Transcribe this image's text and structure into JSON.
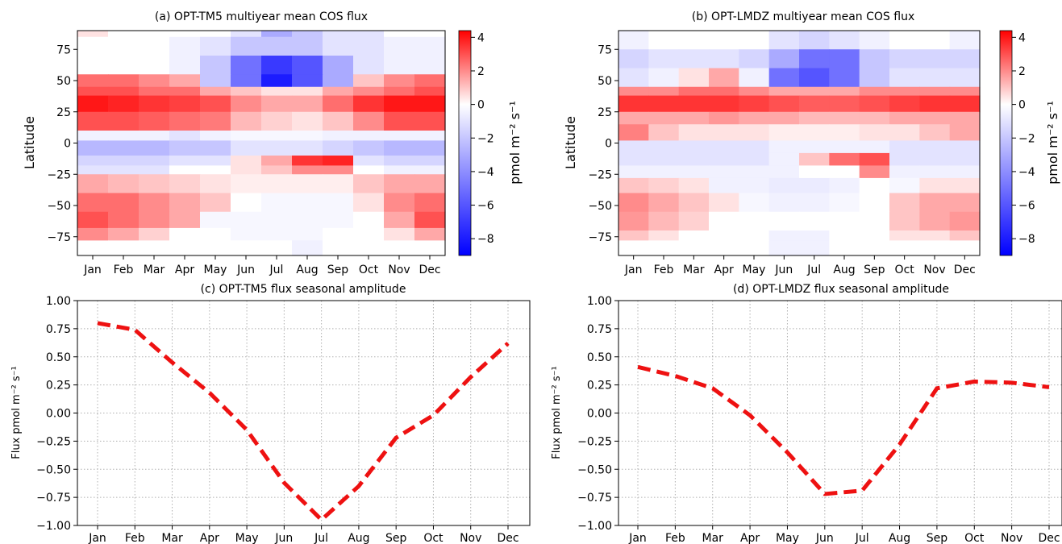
{
  "months": [
    "Jan",
    "Feb",
    "Mar",
    "Apr",
    "May",
    "Jun",
    "Jul",
    "Aug",
    "Sep",
    "Oct",
    "Nov",
    "Dec"
  ],
  "colorbar": {
    "label": "pmol m⁻² s⁻¹",
    "ticks": [
      "4",
      "2",
      "0",
      "−2",
      "−4",
      "−6",
      "−8"
    ],
    "range": [
      -9,
      4.4
    ],
    "colors": {
      "neg": "#0000ff",
      "zero": "#ffffff",
      "pos": "#ff0000"
    }
  },
  "line_style": {
    "color": "#ee1111",
    "dash": "dashed"
  },
  "chart_data": [
    {
      "id": "a",
      "type": "heatmap",
      "title": "(a) OPT-TM5 multiyear mean COS flux",
      "ylabel": "Latitude",
      "xlabel": "",
      "x": [
        "Jan",
        "Feb",
        "Mar",
        "Apr",
        "May",
        "Jun",
        "Jul",
        "Aug",
        "Sep",
        "Oct",
        "Nov",
        "Dec"
      ],
      "ylim": [
        -90,
        90
      ],
      "yticks": [
        "75",
        "50",
        "25",
        "0",
        "−25",
        "−50",
        "−75"
      ],
      "bands": [
        {
          "lat": [
            85,
            90
          ],
          "v": [
            0.5,
            0,
            0,
            0,
            0,
            -1,
            -3,
            -2,
            -1,
            -1,
            0,
            0
          ]
        },
        {
          "lat": [
            70,
            85
          ],
          "v": [
            0,
            0,
            0,
            -0.5,
            -1,
            -2,
            -2,
            -2,
            -1,
            -1,
            -0.5,
            -0.5
          ]
        },
        {
          "lat": [
            55,
            70
          ],
          "v": [
            0,
            0,
            0,
            -0.5,
            -2,
            -5,
            -7,
            -6,
            -3,
            -1,
            -0.5,
            -0.5
          ]
        },
        {
          "lat": [
            45,
            55
          ],
          "v": [
            2.5,
            2.5,
            2,
            1.5,
            -2,
            -5,
            -8,
            -6,
            -3,
            1,
            2,
            2.5
          ]
        },
        {
          "lat": [
            38,
            45
          ],
          "v": [
            3,
            3,
            2.5,
            2.5,
            1.5,
            1,
            0.5,
            0.5,
            1.5,
            2,
            2.5,
            3
          ]
        },
        {
          "lat": [
            25,
            38
          ],
          "v": [
            4,
            3.8,
            3.5,
            3.3,
            3,
            2,
            1.5,
            1.5,
            2.5,
            3.5,
            4,
            4
          ]
        },
        {
          "lat": [
            10,
            25
          ],
          "v": [
            3,
            3,
            2.8,
            2.5,
            2.3,
            1.2,
            0.8,
            0.5,
            1,
            2,
            3,
            3
          ]
        },
        {
          "lat": [
            2,
            10
          ],
          "v": [
            -0.5,
            -0.5,
            -0.5,
            -1,
            -0.5,
            -0.3,
            -0.3,
            -0.3,
            -0.5,
            -0.5,
            -0.5,
            -0.5
          ]
        },
        {
          "lat": [
            -10,
            2
          ],
          "v": [
            -2.5,
            -2.5,
            -2.5,
            -2,
            -2,
            -1,
            -1,
            -1,
            -1.5,
            -2,
            -2.5,
            -2.5
          ]
        },
        {
          "lat": [
            -18,
            -10
          ],
          "v": [
            -1.5,
            -1.5,
            -1.5,
            -1,
            -1,
            0.5,
            1.5,
            3.5,
            3.8,
            -1,
            -1.5,
            -1.5
          ]
        },
        {
          "lat": [
            -25,
            -18
          ],
          "v": [
            -1,
            -1,
            -1,
            0,
            0,
            0.5,
            1,
            2,
            2,
            0,
            -0.5,
            -0.5
          ]
        },
        {
          "lat": [
            -40,
            -25
          ],
          "v": [
            1.5,
            1.2,
            1,
            0.8,
            0.5,
            0.3,
            0.3,
            0.3,
            0.3,
            1,
            1.5,
            1.5
          ]
        },
        {
          "lat": [
            -55,
            -40
          ],
          "v": [
            2.5,
            2.5,
            2,
            1.5,
            1,
            0,
            -0.3,
            -0.3,
            -0.3,
            0.5,
            2,
            2.5
          ]
        },
        {
          "lat": [
            -68,
            -55
          ],
          "v": [
            3,
            2.5,
            2,
            1.5,
            -0.3,
            -0.3,
            -0.3,
            -0.3,
            -0.3,
            0,
            1.5,
            3
          ]
        },
        {
          "lat": [
            -78,
            -68
          ],
          "v": [
            2,
            1.5,
            0.8,
            0,
            0,
            -0.3,
            -0.3,
            -0.3,
            0,
            0,
            0.5,
            1.5
          ]
        },
        {
          "lat": [
            -90,
            -78
          ],
          "v": [
            0,
            0,
            0,
            0,
            0,
            0,
            0,
            -0.5,
            0,
            0,
            0,
            0
          ]
        }
      ]
    },
    {
      "id": "b",
      "type": "heatmap",
      "title": "(b) OPT-LMDZ multiyear mean COS flux",
      "ylabel": "Latitude",
      "xlabel": "",
      "x": [
        "Jan",
        "Feb",
        "Mar",
        "Apr",
        "May",
        "Jun",
        "Jul",
        "Aug",
        "Sep",
        "Oct",
        "Nov",
        "Dec"
      ],
      "ylim": [
        -90,
        90
      ],
      "yticks": [
        "75",
        "50",
        "25",
        "0",
        "−25",
        "−50",
        "−75"
      ],
      "bands": [
        {
          "lat": [
            75,
            90
          ],
          "v": [
            -0.5,
            0,
            0,
            0,
            0,
            -1,
            -1.5,
            -1,
            -0.5,
            0,
            0,
            -0.5
          ]
        },
        {
          "lat": [
            60,
            75
          ],
          "v": [
            -1.5,
            -1,
            -1,
            -1,
            -1.5,
            -3,
            -5,
            -5,
            -2,
            -1.5,
            -1.5,
            -1.5
          ]
        },
        {
          "lat": [
            45,
            60
          ],
          "v": [
            -1,
            -0.5,
            0.5,
            1.5,
            -0.5,
            -5,
            -6,
            -5,
            -2,
            -1,
            -1,
            -1
          ]
        },
        {
          "lat": [
            38,
            45
          ],
          "v": [
            2,
            2,
            2.5,
            2.5,
            2,
            1.5,
            1.5,
            1.5,
            2,
            2,
            2,
            2
          ]
        },
        {
          "lat": [
            25,
            38
          ],
          "v": [
            3.5,
            3.5,
            3.5,
            3.5,
            3.3,
            3,
            2.8,
            2.8,
            3,
            3.3,
            3.5,
            3.5
          ]
        },
        {
          "lat": [
            15,
            25
          ],
          "v": [
            1.5,
            1.5,
            1.5,
            1.8,
            1.5,
            1.5,
            1.2,
            1.2,
            1.2,
            1.5,
            1.5,
            1.5
          ]
        },
        {
          "lat": [
            2,
            15
          ],
          "v": [
            2.2,
            1,
            0.5,
            0.5,
            0.5,
            0.3,
            0.3,
            0.3,
            0.5,
            0.5,
            1,
            1.5
          ]
        },
        {
          "lat": [
            -8,
            2
          ],
          "v": [
            -1,
            -1,
            -1,
            -1,
            -1,
            -0.5,
            -0.5,
            -0.5,
            -0.5,
            -1,
            -1,
            -1
          ]
        },
        {
          "lat": [
            -18,
            -8
          ],
          "v": [
            -1,
            -1,
            -1,
            -1,
            -1,
            -0.5,
            1,
            2.5,
            3,
            -1,
            -1,
            -1
          ]
        },
        {
          "lat": [
            -28,
            -18
          ],
          "v": [
            -0.5,
            -0.5,
            -0.5,
            -0.5,
            -0.5,
            -0.5,
            0,
            0,
            2,
            -0.5,
            -0.5,
            -0.5
          ]
        },
        {
          "lat": [
            -40,
            -28
          ],
          "v": [
            1,
            0.8,
            0.5,
            -0.5,
            -0.5,
            -0.7,
            -0.7,
            -0.5,
            0,
            -0.3,
            0.5,
            0.5
          ]
        },
        {
          "lat": [
            -55,
            -40
          ],
          "v": [
            2,
            1.5,
            1,
            0.5,
            -0.3,
            -0.5,
            -0.5,
            -0.3,
            0,
            1,
            1.5,
            1.5
          ]
        },
        {
          "lat": [
            -70,
            -55
          ],
          "v": [
            1.8,
            1.2,
            0.8,
            0,
            0,
            0,
            0,
            0,
            0,
            1,
            1.5,
            1.8
          ]
        },
        {
          "lat": [
            -78,
            -70
          ],
          "v": [
            1,
            0.5,
            0,
            0,
            0,
            -0.5,
            -0.5,
            0,
            0,
            0.5,
            0.5,
            1
          ]
        },
        {
          "lat": [
            -90,
            -78
          ],
          "v": [
            0,
            0,
            0,
            0,
            0,
            -0.5,
            -0.5,
            0,
            0,
            0,
            0,
            0
          ]
        }
      ]
    },
    {
      "id": "c",
      "type": "line",
      "title": "(c) OPT-TM5 flux seasonal amplitude",
      "ylabel": "Flux pmol m⁻² s⁻¹",
      "xlabel": "",
      "categories": [
        "Jan",
        "Feb",
        "Mar",
        "Apr",
        "May",
        "Jun",
        "Jul",
        "Aug",
        "Sep",
        "Oct",
        "Nov",
        "Dec"
      ],
      "ylim": [
        -1.0,
        1.0
      ],
      "yticks": [
        "1.00",
        "0.75",
        "0.50",
        "0.25",
        "0.00",
        "−0.25",
        "−0.50",
        "−0.75",
        "−1.00"
      ],
      "grid": true,
      "series": [
        {
          "values": [
            0.8,
            0.74,
            0.45,
            0.18,
            -0.15,
            -0.62,
            -0.95,
            -0.65,
            -0.22,
            -0.02,
            0.32,
            0.62
          ]
        }
      ]
    },
    {
      "id": "d",
      "type": "line",
      "title": "(d) OPT-LMDZ flux seasonal amplitude",
      "ylabel": "Flux pmol m⁻² s⁻¹",
      "xlabel": "",
      "categories": [
        "Jan",
        "Feb",
        "Mar",
        "Apr",
        "May",
        "Jun",
        "Jul",
        "Aug",
        "Sep",
        "Oct",
        "Nov",
        "Dec"
      ],
      "ylim": [
        -1.0,
        1.0
      ],
      "yticks": [
        "1.00",
        "0.75",
        "0.50",
        "0.25",
        "0.00",
        "−0.25",
        "−0.50",
        "−0.75",
        "−1.00"
      ],
      "grid": true,
      "series": [
        {
          "values": [
            0.41,
            0.33,
            0.22,
            -0.02,
            -0.35,
            -0.72,
            -0.69,
            -0.28,
            0.22,
            0.28,
            0.27,
            0.23
          ]
        }
      ]
    }
  ]
}
